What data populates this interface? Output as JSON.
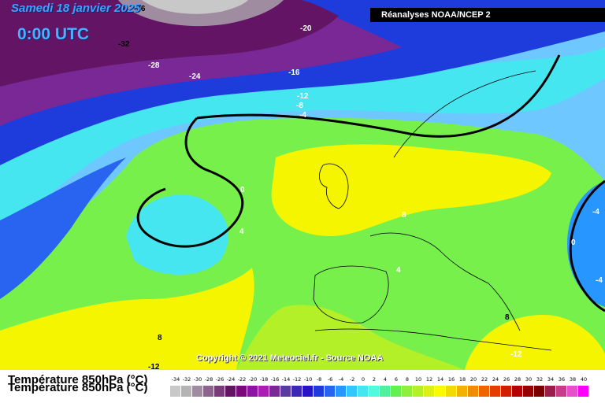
{
  "header": {
    "date": "Samedi 18 janvier 2025",
    "time": "0:00 UTC",
    "source": "Réanalyses NOAA/NCEP 2"
  },
  "copyright": "Copyright © 2021 Meteociel.fr - Source NOAA",
  "parameter": {
    "label": "Température 850hPa (°C)"
  },
  "isotherm_labels": [
    "-36",
    "-32",
    "-28",
    "-24",
    "-20",
    "-16",
    "-12",
    "-8",
    "-4",
    "0",
    "4",
    "8",
    "-12",
    "-4",
    "0",
    "-4",
    "4",
    "8",
    "8",
    "-12",
    "-12"
  ],
  "scale": {
    "ticks": [
      "-34",
      "-32",
      "-30",
      "-28",
      "-26",
      "-24",
      "-22",
      "-20",
      "-18",
      "-16",
      "-14",
      "-12",
      "-10",
      "-8",
      "-6",
      "-4",
      "-2",
      "0",
      "2",
      "4",
      "6",
      "8",
      "10",
      "12",
      "14",
      "16",
      "18",
      "20",
      "22",
      "24",
      "26",
      "28",
      "30",
      "32",
      "34",
      "36",
      "38",
      "40"
    ],
    "colors": [
      "#c8c8c8",
      "#b4b4b4",
      "#a08ca0",
      "#8c648c",
      "#783c78",
      "#641464",
      "#7a0a7a",
      "#8c14a0",
      "#aa1eb4",
      "#7a2896",
      "#5a3ca0",
      "#3c28b4",
      "#2814c8",
      "#1e3cdc",
      "#2864f0",
      "#2896ff",
      "#32c8ff",
      "#46e6f0",
      "#50fadc",
      "#50f0a0",
      "#64f050",
      "#8cf03c",
      "#b4f028",
      "#dcf014",
      "#fafa00",
      "#f0dc00",
      "#f0b400",
      "#f08c00",
      "#f06400",
      "#e63c00",
      "#d21e00",
      "#b40000",
      "#960000",
      "#780000",
      "#9a1e4a",
      "#c83c8c",
      "#e650c8",
      "#ff00ff"
    ]
  }
}
